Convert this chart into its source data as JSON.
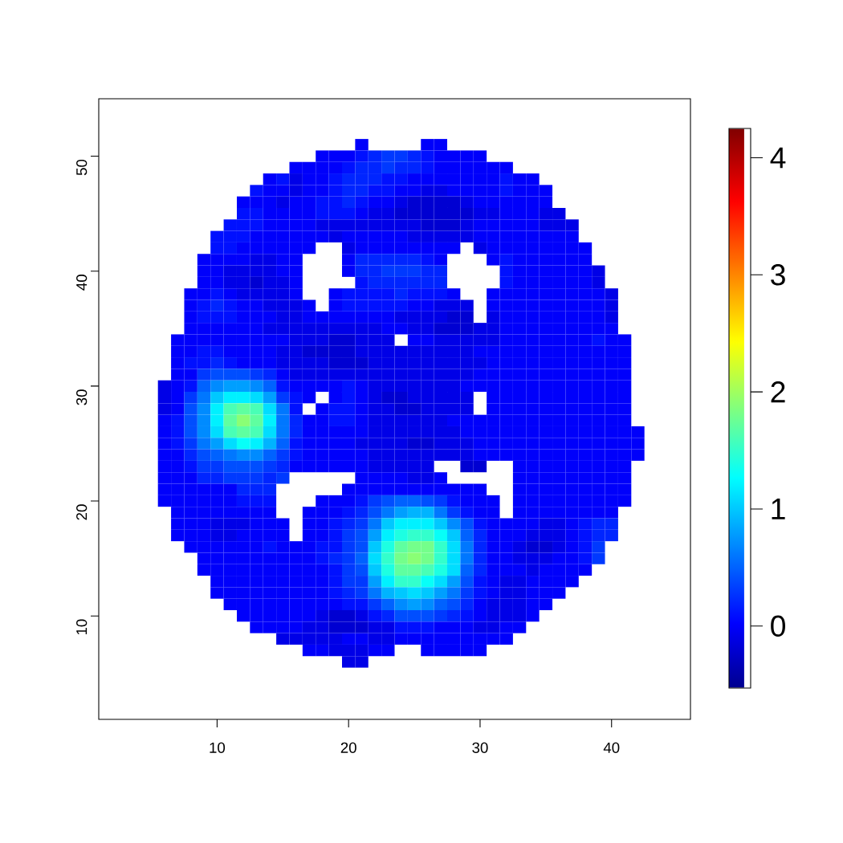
{
  "chart_data": {
    "type": "heatmap",
    "x": [
      6,
      7,
      8,
      9,
      10,
      11,
      12,
      13,
      14,
      15,
      16,
      17,
      18,
      19,
      20,
      21,
      22,
      23,
      24,
      25,
      26,
      27,
      28,
      29,
      30,
      31,
      32,
      33,
      34,
      35,
      36,
      37,
      38,
      39,
      40,
      41,
      42
    ],
    "y": [
      51,
      50,
      49,
      48,
      47,
      46,
      45,
      44,
      43,
      42,
      41,
      40,
      39,
      38,
      37,
      36,
      35,
      34,
      33,
      32,
      31,
      30,
      29,
      28,
      27,
      26,
      25,
      24,
      23,
      22,
      21,
      20,
      19,
      18,
      17,
      16,
      15,
      14,
      13,
      12,
      11,
      10,
      9,
      8,
      7,
      6
    ],
    "xlim": [
      1,
      46
    ],
    "ylim": [
      1,
      55
    ],
    "xticks": [
      10,
      20,
      30,
      40
    ],
    "yticks": [
      10,
      20,
      30,
      40,
      50
    ],
    "clim": [
      -0.53,
      4.25
    ],
    "cticks": [
      0,
      1,
      2,
      3,
      4
    ],
    "cells": [
      [
        null,
        null,
        null,
        null,
        null,
        null,
        null,
        null,
        null,
        null,
        null,
        null,
        null,
        null,
        null,
        0,
        null,
        null,
        null,
        null,
        0,
        0,
        null,
        null,
        null,
        null,
        null,
        null,
        null,
        null,
        null,
        null,
        null,
        null,
        null,
        null,
        null
      ],
      [
        null,
        null,
        null,
        null,
        null,
        null,
        null,
        null,
        null,
        null,
        null,
        null,
        0,
        0,
        0,
        0.1,
        0.2,
        0.3,
        0.3,
        0.2,
        0.1,
        0,
        0,
        0,
        0,
        null,
        null,
        null,
        null,
        null,
        null,
        null,
        null,
        null,
        null,
        null,
        null
      ],
      [
        null,
        null,
        null,
        null,
        null,
        null,
        null,
        null,
        null,
        null,
        0,
        0,
        0,
        0,
        0.1,
        0.2,
        0.2,
        0.3,
        0.2,
        0.2,
        0.1,
        0,
        0,
        0,
        0,
        0,
        0,
        null,
        null,
        null,
        null,
        null,
        null,
        null,
        null,
        null,
        null
      ],
      [
        null,
        null,
        null,
        null,
        null,
        null,
        null,
        null,
        0,
        0.1,
        -0.1,
        0,
        0,
        0.1,
        0.2,
        0.2,
        0.2,
        0.1,
        0.1,
        0,
        0,
        0,
        0,
        0,
        0,
        0,
        0.1,
        0,
        0,
        null,
        null,
        null,
        null,
        null,
        null,
        null,
        null
      ],
      [
        null,
        null,
        null,
        null,
        null,
        null,
        null,
        0.1,
        0,
        0,
        -0.1,
        0,
        0,
        0.1,
        0.2,
        0.2,
        0.1,
        0.1,
        0,
        0,
        -0.1,
        -0.1,
        0,
        0,
        0,
        0,
        0.1,
        0,
        0,
        0,
        null,
        null,
        null,
        null,
        null,
        null,
        null
      ],
      [
        null,
        null,
        null,
        null,
        null,
        null,
        0,
        0,
        0,
        -0.1,
        0,
        0,
        0.1,
        0.1,
        0.2,
        0.1,
        0,
        0,
        -0.1,
        -0.2,
        -0.2,
        -0.2,
        -0.2,
        -0.1,
        0,
        0,
        0,
        0,
        0,
        0,
        null,
        null,
        null,
        null,
        null,
        null,
        null
      ],
      [
        null,
        null,
        null,
        null,
        null,
        null,
        0.1,
        0.1,
        0,
        0,
        0,
        0,
        0.1,
        0.1,
        0.1,
        0,
        -0.1,
        -0.1,
        -0.2,
        -0.2,
        -0.2,
        -0.2,
        -0.2,
        -0.2,
        -0.1,
        -0.1,
        0,
        0,
        0,
        -0.1,
        -0.1,
        null,
        null,
        null,
        null,
        null,
        null
      ],
      [
        null,
        null,
        null,
        null,
        null,
        0.1,
        0.1,
        0.1,
        0,
        0,
        0,
        0,
        -0.1,
        -0.1,
        -0.1,
        -0.1,
        -0.1,
        -0.1,
        -0.1,
        -0.1,
        -0.2,
        -0.2,
        -0.2,
        -0.1,
        0,
        0,
        0,
        0,
        0,
        -0.1,
        -0.1,
        -0.1,
        null,
        null,
        null,
        null,
        null
      ],
      [
        null,
        null,
        null,
        null,
        0.1,
        0.1,
        0.1,
        0,
        0,
        0,
        0,
        0,
        0,
        -0.1,
        0,
        0,
        0,
        0,
        0,
        -0.1,
        -0.1,
        -0.1,
        -0.1,
        -0.1,
        0,
        0,
        0,
        0,
        0,
        0,
        0,
        0,
        null,
        null,
        null,
        null,
        null
      ],
      [
        null,
        null,
        null,
        null,
        0.1,
        0.1,
        0,
        0,
        0,
        0,
        0,
        0,
        null,
        null,
        -0.1,
        0,
        0,
        0,
        0,
        0,
        0,
        0,
        0,
        null,
        -0.1,
        0,
        0,
        0,
        0,
        0,
        0,
        0,
        0,
        null,
        null,
        null,
        null
      ],
      [
        null,
        null,
        null,
        0,
        0,
        0,
        0,
        -0.1,
        -0.1,
        0,
        0,
        null,
        null,
        null,
        0,
        0.2,
        0.2,
        0.2,
        0.2,
        0.2,
        0.1,
        0,
        null,
        null,
        null,
        0,
        0.1,
        0,
        0,
        0,
        0,
        0,
        0,
        null,
        null,
        null,
        null
      ],
      [
        null,
        null,
        null,
        0,
        0,
        -0.1,
        -0.1,
        -0.1,
        -0.1,
        0,
        0,
        null,
        null,
        null,
        0,
        0.2,
        0.2,
        0.3,
        0.3,
        0.3,
        0.2,
        0.2,
        null,
        null,
        null,
        null,
        0.1,
        0,
        0,
        0,
        0,
        0,
        0,
        -0.1,
        null,
        null,
        null
      ],
      [
        null,
        null,
        null,
        0,
        0,
        -0.1,
        -0.1,
        -0.2,
        -0.1,
        -0.1,
        0,
        null,
        null,
        null,
        null,
        0.1,
        0.2,
        0.2,
        0.2,
        0.2,
        0.2,
        0.2,
        null,
        null,
        null,
        null,
        0.1,
        0,
        0,
        0,
        0,
        0,
        0,
        -0.1,
        null,
        null,
        null
      ],
      [
        null,
        null,
        0,
        0,
        0.1,
        0,
        -0.1,
        -0.1,
        -0.1,
        -0.1,
        0,
        null,
        null,
        0,
        0.1,
        0.1,
        0.1,
        0.1,
        0.2,
        0.1,
        0.1,
        0.1,
        0,
        null,
        null,
        0,
        0,
        0,
        0,
        0,
        0,
        0,
        0,
        0,
        -0.1,
        null,
        null
      ],
      [
        null,
        null,
        0,
        0.1,
        0.2,
        0.1,
        0,
        0,
        -0.1,
        -0.1,
        -0.1,
        0,
        null,
        0,
        0.1,
        0.1,
        0.1,
        0.1,
        0.1,
        0,
        0,
        -0.1,
        -0.1,
        -0.1,
        null,
        0,
        0,
        0,
        0,
        0,
        0,
        0,
        0,
        0,
        -0.1,
        null,
        null
      ],
      [
        null,
        null,
        0,
        0.1,
        0.1,
        0.1,
        0,
        0,
        0,
        -0.1,
        -0.1,
        0,
        0,
        0,
        0,
        0,
        0,
        0,
        -0.1,
        -0.1,
        -0.1,
        -0.1,
        -0.2,
        -0.2,
        null,
        -0.1,
        0,
        0,
        0,
        0,
        0,
        0,
        0,
        0,
        -0.1,
        null,
        null
      ],
      [
        null,
        null,
        0,
        0,
        0,
        0,
        0,
        0,
        -0.1,
        -0.1,
        -0.1,
        -0.1,
        -0.1,
        -0.1,
        -0.1,
        -0.1,
        -0.1,
        0,
        0,
        -0.1,
        -0.1,
        -0.2,
        -0.2,
        -0.2,
        -0.1,
        -0.1,
        0,
        0,
        0,
        0,
        0,
        0,
        0,
        0,
        0,
        null,
        null
      ],
      [
        null,
        0,
        0,
        0,
        0,
        0,
        0,
        0,
        0,
        0,
        -0.1,
        -0.1,
        -0.1,
        -0.2,
        -0.2,
        -0.1,
        -0.1,
        -0.1,
        null,
        0,
        0,
        -0.1,
        -0.1,
        -0.1,
        -0.1,
        -0.1,
        0,
        0,
        0,
        0,
        0,
        0,
        0,
        0.1,
        0,
        0,
        null
      ],
      [
        null,
        0,
        0,
        0.1,
        0.1,
        0,
        0,
        0,
        0,
        -0.1,
        -0.1,
        -0.2,
        -0.2,
        -0.2,
        -0.2,
        -0.1,
        -0.1,
        -0.1,
        -0.1,
        -0.1,
        -0.1,
        -0.1,
        -0.1,
        -0.1,
        0,
        0,
        0,
        0,
        0,
        0,
        0,
        0,
        0,
        0,
        0,
        0,
        null
      ],
      [
        null,
        0,
        0.1,
        0.1,
        0.2,
        0.1,
        0,
        0,
        0,
        -0.1,
        -0.1,
        -0.1,
        -0.1,
        -0.2,
        -0.2,
        -0.2,
        -0.1,
        -0.1,
        -0.1,
        -0.1,
        -0.1,
        -0.1,
        -0.1,
        -0.1,
        -0.1,
        0,
        0,
        0,
        0,
        0,
        0,
        0,
        0,
        0,
        0,
        0,
        null
      ],
      [
        null,
        0,
        0,
        0.3,
        0.4,
        0.4,
        0.4,
        0.3,
        0.2,
        0,
        -0.1,
        -0.1,
        -0.1,
        -0.1,
        -0.1,
        -0.1,
        -0.1,
        -0.1,
        -0.1,
        -0.1,
        -0.1,
        -0.1,
        -0.1,
        -0.1,
        0,
        0,
        0,
        0,
        0,
        0,
        0,
        0,
        0,
        0,
        0,
        0,
        null
      ],
      [
        -0.1,
        0,
        0.1,
        0.5,
        0.7,
        0.8,
        0.8,
        0.7,
        0.5,
        0.1,
        0,
        0,
        0,
        0,
        0.1,
        0,
        -0.1,
        -0.1,
        -0.1,
        -0.1,
        -0.1,
        -0.1,
        -0.1,
        0,
        0,
        0,
        0,
        0,
        0,
        0,
        0,
        0,
        0,
        0,
        0,
        0,
        null
      ],
      [
        -0.1,
        0,
        0.3,
        0.6,
        1.0,
        1.2,
        1.2,
        1.1,
        0.8,
        0.3,
        0.1,
        0,
        null,
        0,
        0.1,
        0,
        -0.1,
        -0.2,
        -0.2,
        -0.1,
        -0.1,
        -0.1,
        -0.1,
        -0.1,
        null,
        0,
        0,
        0,
        0,
        0,
        0,
        0,
        0,
        0,
        0,
        0,
        null
      ],
      [
        -0.1,
        0,
        0.4,
        0.7,
        1.2,
        1.6,
        1.7,
        1.6,
        1.1,
        0.6,
        0.1,
        null,
        0,
        0.1,
        0.1,
        0,
        -0.1,
        -0.1,
        -0.2,
        -0.2,
        -0.1,
        -0.1,
        -0.1,
        -0.1,
        null,
        0,
        0,
        0,
        0,
        0,
        0,
        0,
        0,
        0,
        0,
        0,
        null
      ],
      [
        0,
        0.1,
        0.4,
        0.7,
        1.2,
        1.7,
        1.9,
        1.7,
        1.2,
        0.6,
        0.2,
        0,
        0,
        0.1,
        0.1,
        0,
        -0.1,
        -0.1,
        -0.1,
        -0.1,
        -0.1,
        -0.1,
        0,
        0,
        0,
        0,
        0,
        0,
        0,
        0,
        0,
        0,
        0,
        0,
        0,
        0,
        null
      ],
      [
        0,
        0.1,
        0.4,
        0.7,
        1.1,
        1.6,
        1.7,
        1.6,
        1.1,
        0.6,
        0.2,
        0,
        0,
        0,
        0,
        0,
        -0.1,
        -0.1,
        -0.1,
        -0.1,
        -0.1,
        -0.1,
        -0.1,
        0,
        0,
        0,
        0,
        0,
        0,
        0,
        0,
        0,
        0,
        0,
        0,
        0,
        0
      ],
      [
        0,
        0.1,
        0.3,
        0.6,
        0.8,
        1.1,
        1.3,
        1.2,
        0.9,
        0.5,
        0.1,
        0,
        0,
        0,
        0,
        -0.1,
        -0.1,
        -0.1,
        -0.1,
        -0.2,
        -0.2,
        -0.1,
        -0.1,
        -0.1,
        0,
        0,
        0,
        0,
        0,
        0,
        0,
        0,
        0,
        0,
        0,
        0,
        0
      ],
      [
        0,
        0,
        0.2,
        0.4,
        0.5,
        0.6,
        0.7,
        0.7,
        0.5,
        0.3,
        0.1,
        0,
        0,
        0,
        0,
        0,
        -0.1,
        -0.1,
        -0.1,
        -0.1,
        -0.1,
        -0.1,
        -0.1,
        -0.1,
        0,
        0,
        0,
        0,
        0,
        0,
        0,
        0,
        0,
        0,
        0,
        0,
        0
      ],
      [
        0,
        0,
        0.1,
        0.3,
        0.3,
        0.4,
        0.4,
        0.4,
        0.3,
        0.2,
        0,
        0,
        0,
        0,
        0,
        0,
        -0.1,
        -0.1,
        -0.1,
        -0.1,
        -0.1,
        null,
        null,
        -0.2,
        -0.2,
        null,
        null,
        0,
        0,
        0,
        0,
        0,
        0,
        0,
        0,
        0,
        null
      ],
      [
        0,
        0,
        0,
        0.2,
        0.2,
        0.3,
        0.3,
        0.3,
        0.2,
        0.3,
        null,
        null,
        null,
        null,
        null,
        0,
        0,
        0,
        0,
        -0.1,
        -0.1,
        0,
        null,
        null,
        null,
        null,
        null,
        0,
        0,
        0,
        0,
        0,
        0,
        0,
        0,
        0,
        null
      ],
      [
        0,
        0,
        0,
        0,
        0,
        0,
        0.2,
        0.2,
        0.2,
        null,
        null,
        null,
        null,
        null,
        0,
        0,
        0,
        0,
        0,
        0,
        0,
        0,
        0,
        0,
        0,
        null,
        null,
        0,
        0,
        0,
        0,
        0,
        0,
        0,
        0,
        0,
        null
      ],
      [
        0,
        0,
        0,
        0,
        0,
        0,
        0.1,
        0.1,
        0.1,
        null,
        null,
        null,
        0,
        0,
        0,
        0.1,
        0.3,
        0.4,
        0.5,
        0.5,
        0.4,
        0.3,
        0.1,
        0,
        0,
        0,
        null,
        0,
        0,
        0,
        0,
        0,
        0,
        0,
        0,
        0,
        null
      ],
      [
        null,
        0,
        0,
        0,
        0,
        0,
        0,
        0,
        0,
        null,
        null,
        0,
        0,
        0,
        0.1,
        0.2,
        0.4,
        0.6,
        0.8,
        0.9,
        0.9,
        0.6,
        0.3,
        0.1,
        0,
        0,
        null,
        0,
        0,
        0,
        0,
        0,
        0,
        0,
        0,
        null,
        null
      ],
      [
        null,
        0,
        0,
        0,
        -0.1,
        -0.1,
        -0.1,
        0,
        0,
        0,
        null,
        0,
        0,
        0.1,
        0.2,
        0.3,
        0.6,
        1.0,
        1.2,
        1.2,
        1.2,
        1.0,
        0.7,
        0.4,
        0.1,
        0,
        0,
        0,
        0,
        -0.1,
        -0.1,
        0,
        0.1,
        0.2,
        0.2,
        null,
        null
      ],
      [
        null,
        0,
        0,
        0,
        -0.1,
        -0.1,
        0,
        0,
        0,
        0,
        null,
        0,
        0,
        0.1,
        0.3,
        0.4,
        0.8,
        1.2,
        1.4,
        1.5,
        1.5,
        1.3,
        1.0,
        0.5,
        0.2,
        0,
        0,
        0,
        -0.1,
        -0.1,
        -0.1,
        0,
        0.1,
        0.2,
        0.2,
        null,
        null
      ],
      [
        null,
        null,
        0,
        0,
        0,
        0,
        0,
        0,
        0.1,
        0,
        0,
        0,
        0.1,
        0.1,
        0.3,
        0.4,
        1.0,
        1.4,
        1.7,
        1.8,
        1.8,
        1.5,
        1.1,
        0.6,
        0.2,
        0,
        0,
        -0.1,
        -0.2,
        -0.2,
        -0.1,
        0,
        0.1,
        0.3,
        null,
        null,
        null
      ],
      [
        null,
        null,
        null,
        0,
        0,
        0,
        0,
        0,
        0,
        0,
        0,
        0,
        0.1,
        0.2,
        0.3,
        0.5,
        1.1,
        1.5,
        1.8,
        1.9,
        1.8,
        1.5,
        1.1,
        0.6,
        0.2,
        0,
        0,
        -0.1,
        -0.1,
        -0.1,
        0,
        0,
        0.1,
        0.3,
        null,
        null,
        null
      ],
      [
        null,
        null,
        null,
        0,
        0,
        0,
        0,
        0,
        0,
        0,
        0,
        0,
        0,
        0.1,
        0.3,
        0.4,
        1.0,
        1.4,
        1.7,
        1.7,
        1.6,
        1.4,
        1.1,
        0.5,
        0.2,
        0,
        0,
        0,
        -0.1,
        0,
        0,
        0,
        0,
        null,
        null,
        null,
        null
      ],
      [
        null,
        null,
        null,
        null,
        0,
        0,
        0,
        0,
        0,
        0,
        0,
        0,
        0,
        0.1,
        0.3,
        0.3,
        0.8,
        1.2,
        1.5,
        1.5,
        1.3,
        1.1,
        0.8,
        0.4,
        0.1,
        0,
        -0.1,
        -0.1,
        0,
        0,
        0,
        0,
        null,
        null,
        null,
        null,
        null
      ],
      [
        null,
        null,
        null,
        null,
        0,
        0,
        0,
        0,
        0,
        0,
        0,
        0,
        0,
        0.1,
        0.2,
        0.3,
        0.6,
        0.9,
        1.0,
        1.1,
        1.0,
        0.8,
        0.6,
        0.3,
        0.1,
        0,
        -0.1,
        -0.1,
        0,
        0,
        0,
        null,
        null,
        null,
        null,
        null,
        null
      ],
      [
        null,
        null,
        null,
        null,
        null,
        0,
        0,
        0,
        0,
        0,
        0,
        0,
        0,
        0,
        0.1,
        0.1,
        0.3,
        0.5,
        0.7,
        0.8,
        0.7,
        0.5,
        0.4,
        0.2,
        0,
        -0.1,
        -0.1,
        -0.1,
        0,
        0,
        null,
        null,
        null,
        null,
        null,
        null,
        null
      ],
      [
        null,
        null,
        null,
        null,
        null,
        null,
        0,
        0,
        0,
        0,
        0,
        0,
        -0.1,
        -0.2,
        -0.2,
        -0.1,
        0.1,
        0.2,
        0.4,
        0.4,
        0.4,
        0.3,
        0.2,
        0.1,
        0,
        -0.1,
        -0.1,
        -0.1,
        0,
        null,
        null,
        null,
        null,
        null,
        null,
        null,
        null
      ],
      [
        null,
        null,
        null,
        null,
        null,
        null,
        null,
        0,
        0,
        0,
        0,
        -0.1,
        -0.1,
        -0.2,
        -0.2,
        -0.2,
        -0.1,
        -0.1,
        0.1,
        0.1,
        0.1,
        0,
        0,
        0,
        -0.1,
        -0.1,
        0,
        0,
        null,
        null,
        null,
        null,
        null,
        null,
        null,
        null,
        null
      ],
      [
        null,
        null,
        null,
        null,
        null,
        null,
        null,
        null,
        null,
        -0.1,
        -0.1,
        -0.1,
        -0.1,
        -0.1,
        0,
        0,
        -0.1,
        -0.1,
        0,
        0,
        0,
        0,
        0,
        0,
        0,
        0,
        0,
        null,
        null,
        null,
        null,
        null,
        null,
        null,
        null,
        null,
        null
      ],
      [
        null,
        null,
        null,
        null,
        null,
        null,
        null,
        null,
        null,
        null,
        null,
        0,
        0,
        -0.1,
        -0.1,
        -0.1,
        0,
        0,
        null,
        null,
        0,
        0,
        0,
        0,
        0,
        null,
        null,
        null,
        null,
        null,
        null,
        null,
        null,
        null,
        null,
        null,
        null
      ],
      [
        null,
        null,
        null,
        null,
        null,
        null,
        null,
        null,
        null,
        null,
        null,
        null,
        null,
        null,
        -0.1,
        -0.1,
        null,
        null,
        null,
        null,
        null,
        null,
        null,
        null,
        null,
        null,
        null,
        null,
        null,
        null,
        null,
        null,
        null,
        null,
        null,
        null,
        null
      ]
    ]
  }
}
